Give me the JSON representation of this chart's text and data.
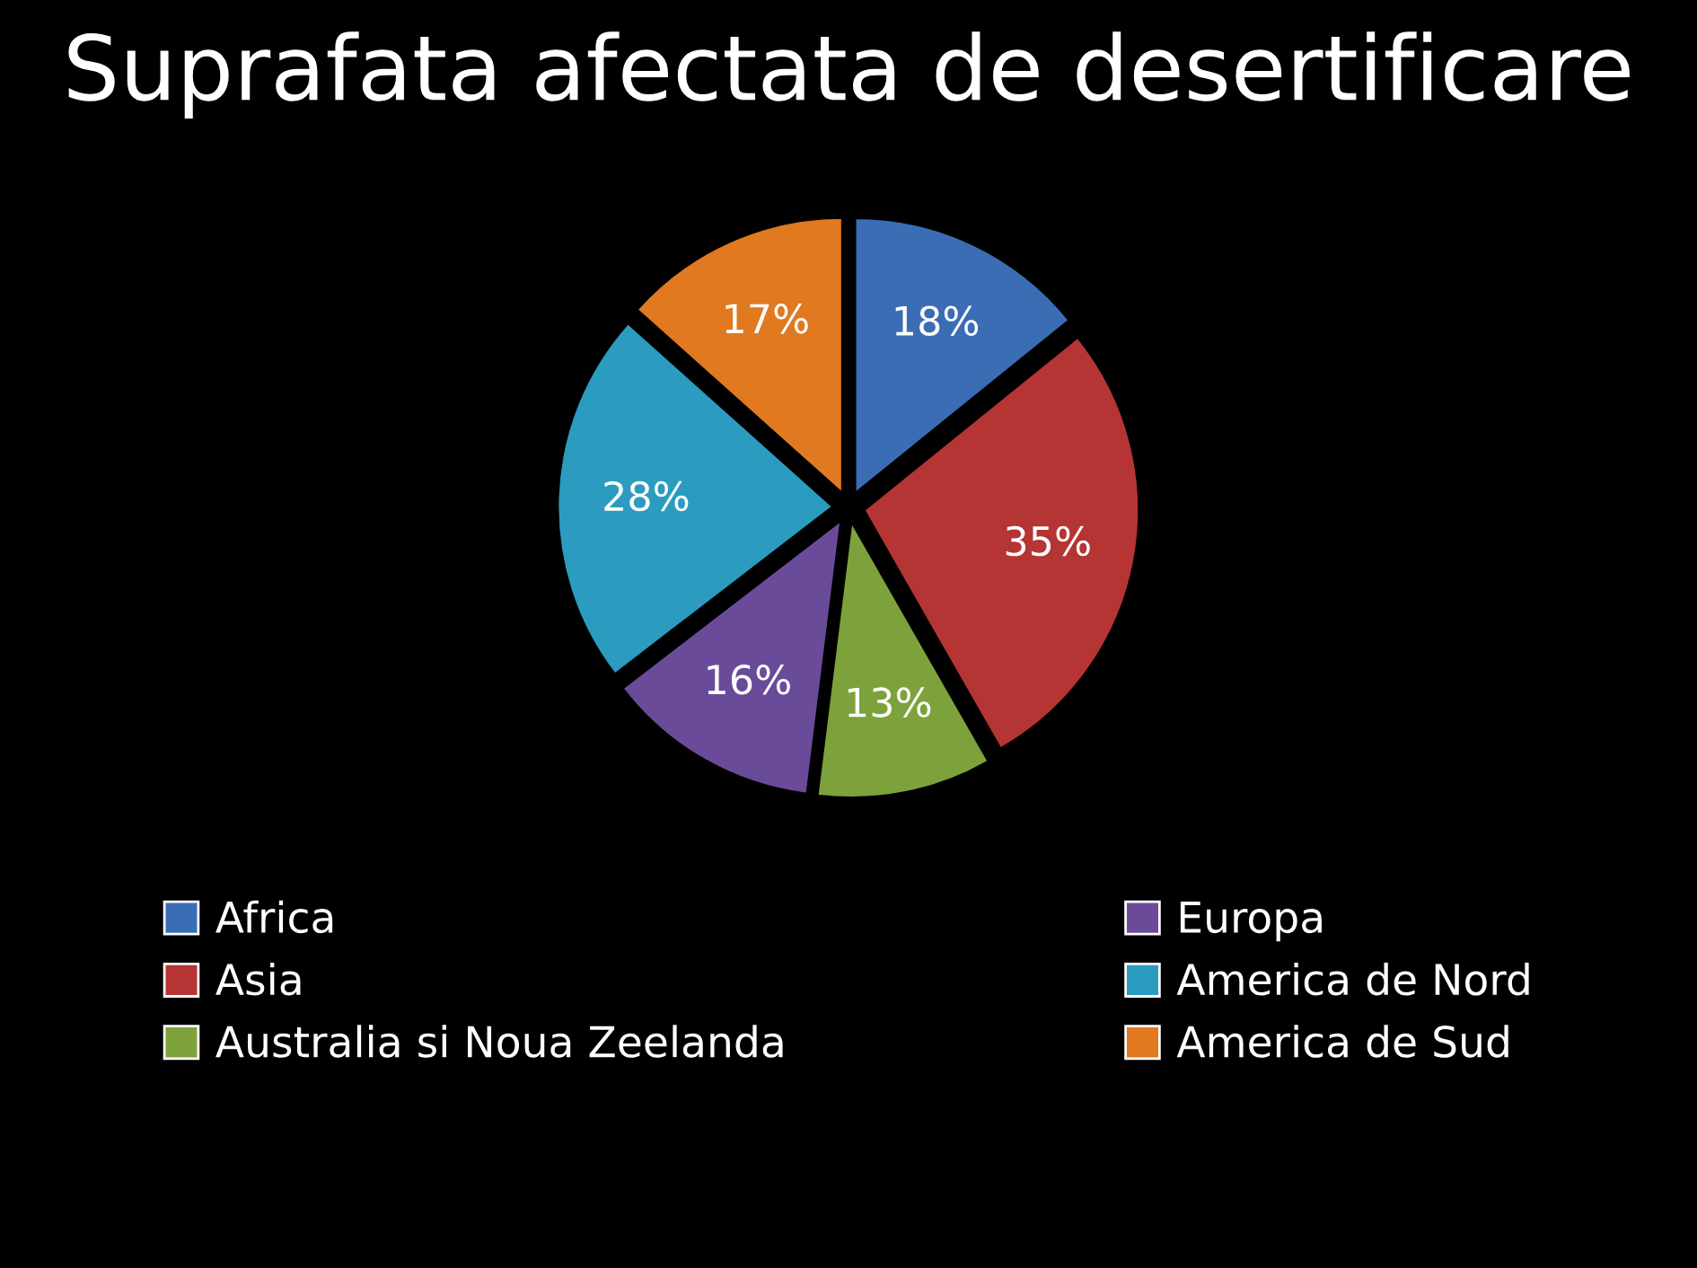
{
  "chart_data": {
    "type": "pie",
    "title": "Suprafata afectata de desertificare",
    "categories": [
      "Africa",
      "Asia",
      "Australia si Noua Zeelanda",
      "Europa",
      "America de Nord",
      "America de Sud"
    ],
    "values": [
      18,
      35,
      13,
      16,
      28,
      17
    ],
    "value_labels": [
      "18%",
      "35%",
      "13%",
      "16%",
      "28%",
      "17%"
    ],
    "colors": [
      "#3b6db5",
      "#b53434",
      "#7ea23b",
      "#6a4b9a",
      "#2b9cbf",
      "#e0791f"
    ],
    "legend": "bottom"
  }
}
